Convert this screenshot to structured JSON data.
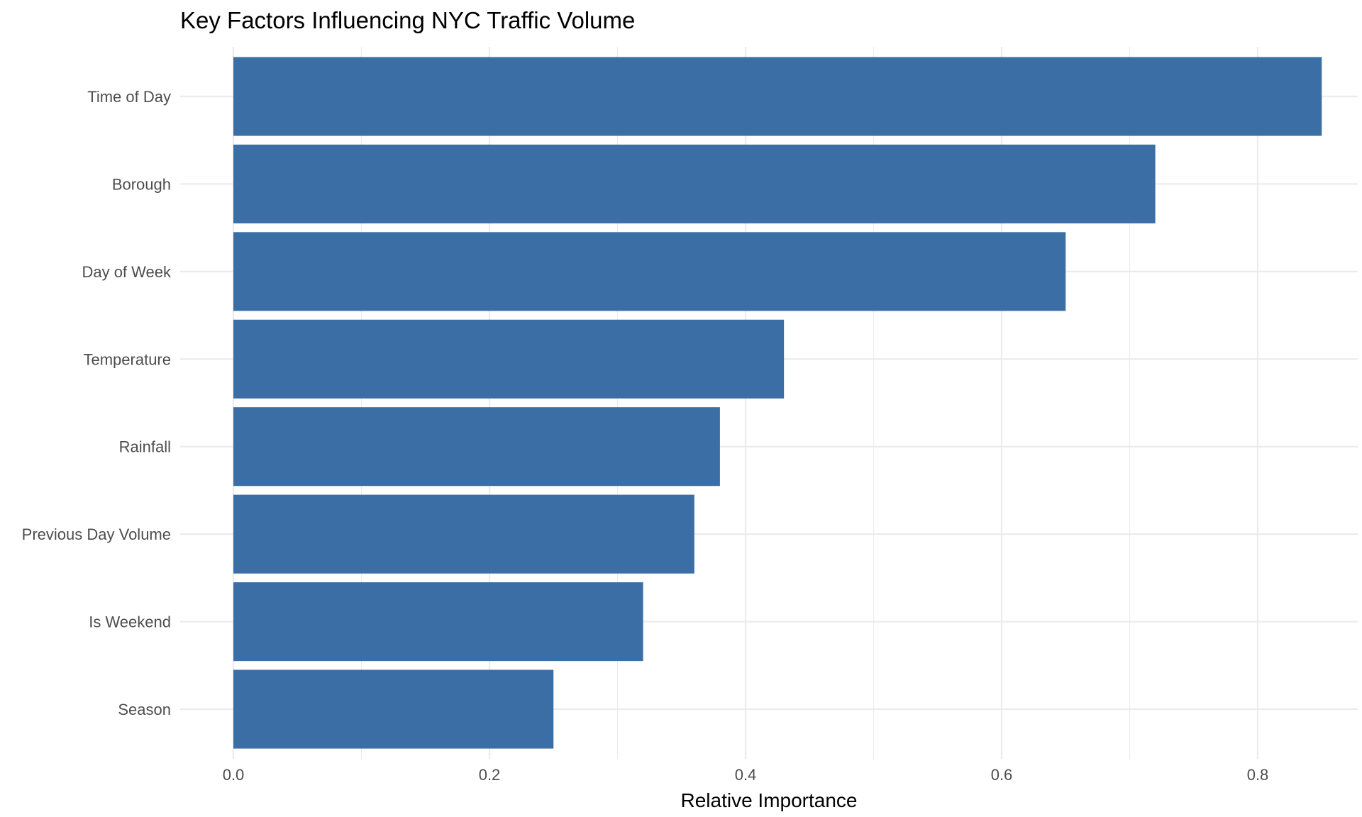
{
  "chart_data": {
    "type": "bar",
    "orientation": "horizontal",
    "title": "Key Factors Influencing NYC Traffic Volume",
    "xlabel": "Relative Importance",
    "ylabel": "",
    "categories": [
      "Time of Day",
      "Borough",
      "Day of Week",
      "Temperature",
      "Rainfall",
      "Previous Day Volume",
      "Is Weekend",
      "Season"
    ],
    "values": [
      0.85,
      0.72,
      0.65,
      0.43,
      0.38,
      0.36,
      0.32,
      0.25
    ],
    "xlim": [
      0,
      0.89
    ],
    "xticks": [
      "0.0",
      "0.2",
      "0.4",
      "0.6",
      "0.8"
    ],
    "grid": true,
    "legend": "none",
    "bar_color": "#3a6ea5"
  }
}
